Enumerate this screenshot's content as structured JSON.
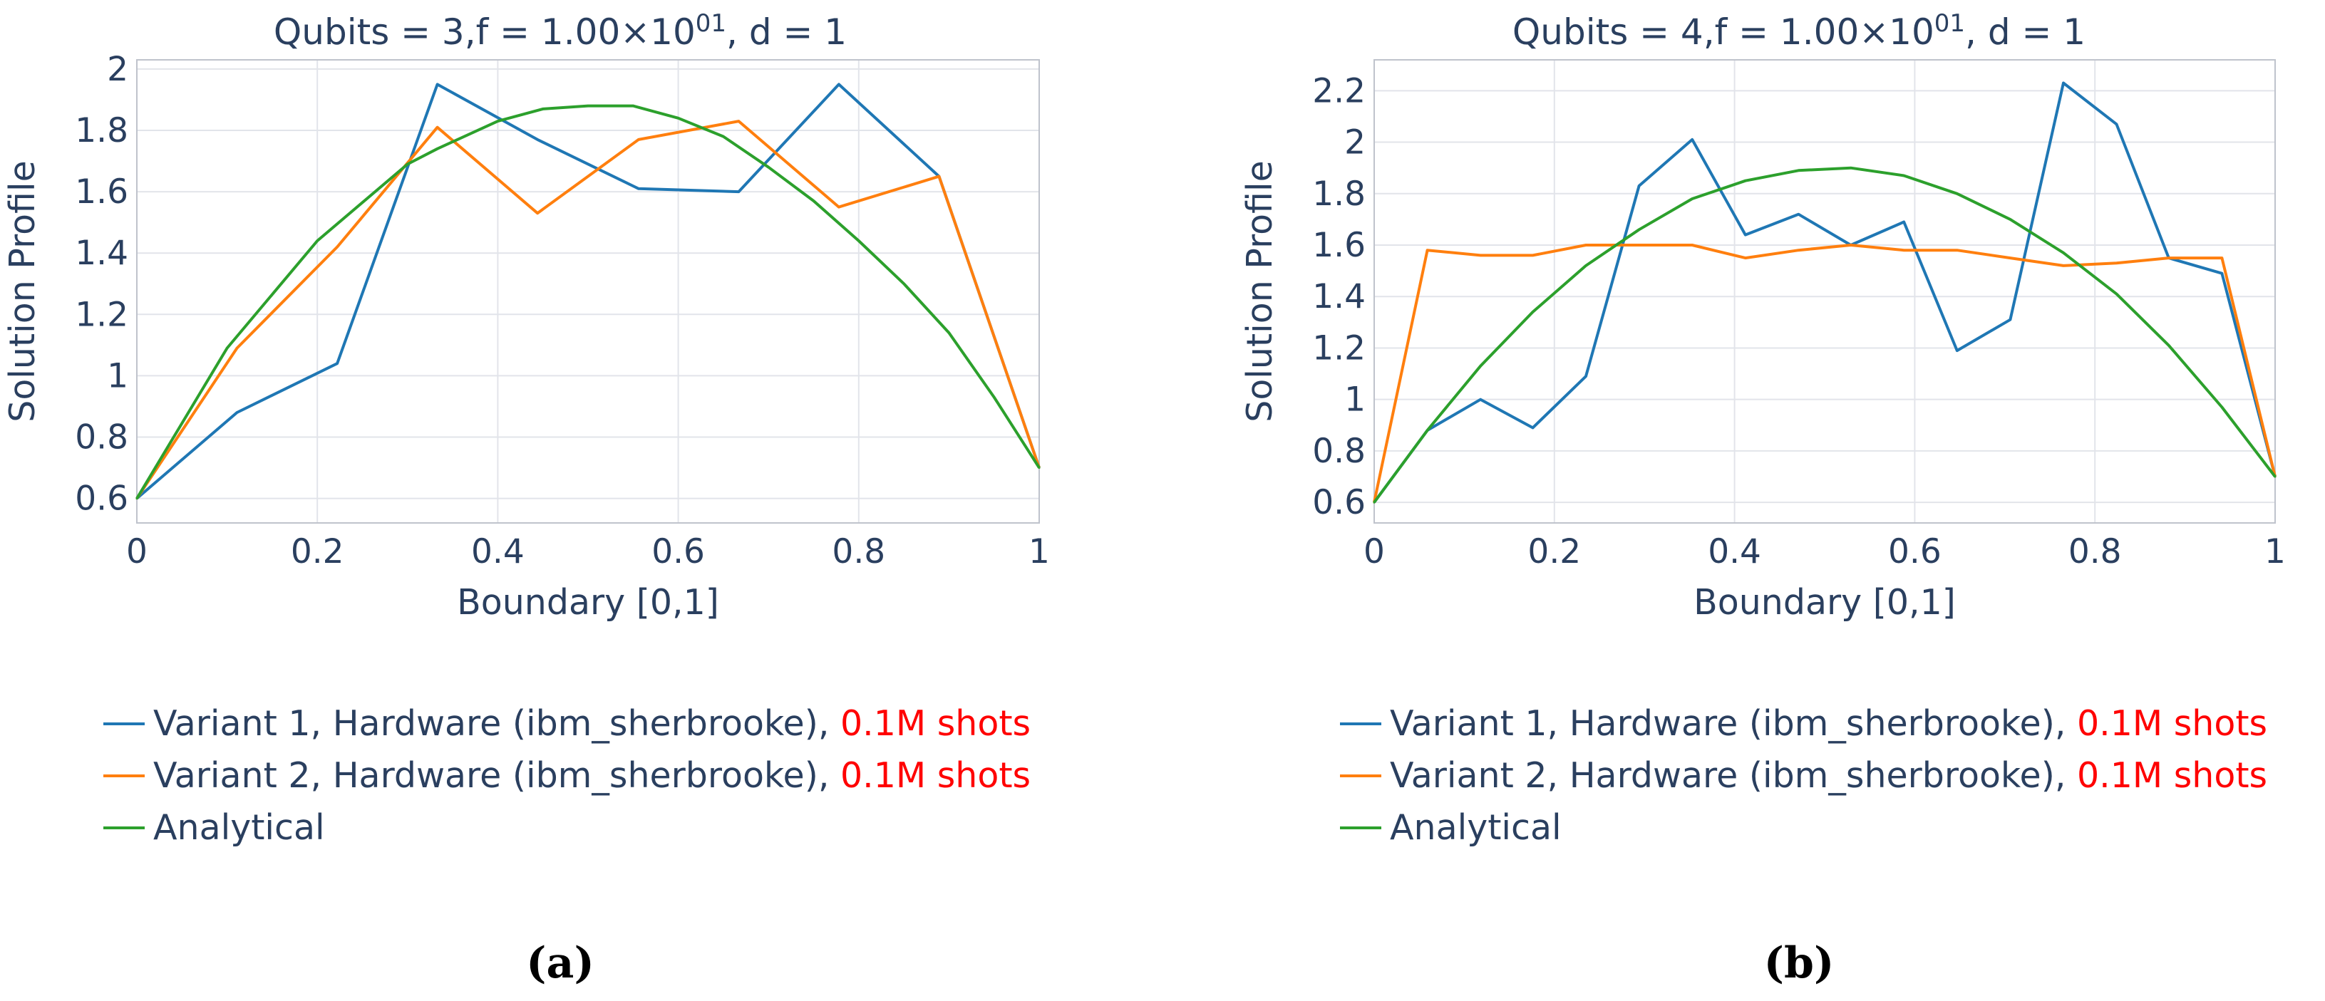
{
  "colors": {
    "variant1": "#1f77b4",
    "variant2": "#ff7f0e",
    "analytical": "#2ca02c",
    "shots_highlight": "#ff0000"
  },
  "chart_data": [
    {
      "type": "line",
      "panel_label": "(a)",
      "title": {
        "prefix": "Qubits = 3,f = 1.00×10",
        "exp": "01",
        "suffix": ", d = 1"
      },
      "xlabel": "Boundary [0,1]",
      "ylabel": "Solution Profile",
      "xlim": [
        0,
        1
      ],
      "ylim": [
        0.52,
        2.03
      ],
      "xticks": [
        0,
        0.2,
        0.4,
        0.6,
        0.8,
        1
      ],
      "xtick_labels": [
        "0",
        "0.2",
        "0.4",
        "0.6",
        "0.8",
        "1"
      ],
      "yticks": [
        0.6,
        0.8,
        1,
        1.2,
        1.4,
        1.6,
        1.8,
        2
      ],
      "ytick_labels": [
        "0.6",
        "0.8",
        "1",
        "1.2",
        "1.4",
        "1.6",
        "1.8",
        "2"
      ],
      "grid": true,
      "legend_position": "bottom",
      "series": [
        {
          "name": "Variant 1, Hardware (ibm_sherbrooke), ",
          "shots": "0.1M shots",
          "color_key": "variant1",
          "x": [
            0,
            0.111,
            0.222,
            0.333,
            0.444,
            0.556,
            0.667,
            0.778,
            0.889,
            1
          ],
          "y": [
            0.6,
            0.88,
            1.04,
            1.95,
            1.77,
            1.61,
            1.6,
            1.95,
            1.65,
            0.7
          ]
        },
        {
          "name": "Variant 2, Hardware (ibm_sherbrooke), ",
          "shots": "0.1M shots",
          "color_key": "variant2",
          "x": [
            0,
            0.111,
            0.222,
            0.333,
            0.444,
            0.556,
            0.667,
            0.778,
            0.889,
            1
          ],
          "y": [
            0.6,
            1.09,
            1.42,
            1.81,
            1.53,
            1.77,
            1.83,
            1.55,
            1.65,
            0.7
          ]
        },
        {
          "name": "Analytical",
          "shots": "",
          "color_key": "analytical",
          "x": [
            0,
            0.1,
            0.2,
            0.3,
            0.333,
            0.4,
            0.45,
            0.5,
            0.55,
            0.6,
            0.65,
            0.7,
            0.75,
            0.8,
            0.85,
            0.9,
            0.95,
            1
          ],
          "y": [
            0.6,
            1.09,
            1.44,
            1.69,
            1.74,
            1.83,
            1.87,
            1.88,
            1.88,
            1.84,
            1.78,
            1.68,
            1.57,
            1.44,
            1.3,
            1.14,
            0.93,
            0.7
          ]
        }
      ]
    },
    {
      "type": "line",
      "panel_label": "(b)",
      "title": {
        "prefix": "Qubits = 4,f = 1.00×10",
        "exp": "01",
        "suffix": ", d = 1"
      },
      "xlabel": "Boundary [0,1]",
      "ylabel": "Solution Profile",
      "xlim": [
        0,
        1
      ],
      "ylim": [
        0.52,
        2.32
      ],
      "xticks": [
        0,
        0.2,
        0.4,
        0.6,
        0.8,
        1
      ],
      "xtick_labels": [
        "0",
        "0.2",
        "0.4",
        "0.6",
        "0.8",
        "1"
      ],
      "yticks": [
        0.6,
        0.8,
        1,
        1.2,
        1.4,
        1.6,
        1.8,
        2,
        2.2
      ],
      "ytick_labels": [
        "0.6",
        "0.8",
        "1",
        "1.2",
        "1.4",
        "1.6",
        "1.8",
        "2",
        "2.2"
      ],
      "grid": true,
      "legend_position": "bottom",
      "series": [
        {
          "name": "Variant 1, Hardware (ibm_sherbrooke), ",
          "shots": "0.1M shots",
          "color_key": "variant1",
          "x": [
            0,
            0.059,
            0.118,
            0.176,
            0.235,
            0.294,
            0.353,
            0.412,
            0.471,
            0.529,
            0.588,
            0.647,
            0.706,
            0.765,
            0.824,
            0.882,
            0.941,
            1
          ],
          "y": [
            0.6,
            0.88,
            1.0,
            0.89,
            1.09,
            1.83,
            2.01,
            1.64,
            1.72,
            1.6,
            1.69,
            1.19,
            1.31,
            2.23,
            2.07,
            1.55,
            1.49,
            0.7
          ]
        },
        {
          "name": "Variant 2, Hardware (ibm_sherbrooke), ",
          "shots": "0.1M shots",
          "color_key": "variant2",
          "x": [
            0,
            0.059,
            0.118,
            0.176,
            0.235,
            0.294,
            0.353,
            0.412,
            0.471,
            0.529,
            0.588,
            0.647,
            0.706,
            0.765,
            0.824,
            0.882,
            0.941,
            1
          ],
          "y": [
            0.6,
            1.58,
            1.56,
            1.56,
            1.6,
            1.6,
            1.6,
            1.55,
            1.58,
            1.6,
            1.58,
            1.58,
            1.55,
            1.52,
            1.53,
            1.55,
            1.55,
            0.7
          ]
        },
        {
          "name": "Analytical",
          "shots": "",
          "color_key": "analytical",
          "x": [
            0,
            0.059,
            0.118,
            0.176,
            0.235,
            0.294,
            0.353,
            0.412,
            0.471,
            0.529,
            0.588,
            0.647,
            0.706,
            0.765,
            0.824,
            0.882,
            0.941,
            1
          ],
          "y": [
            0.6,
            0.88,
            1.13,
            1.34,
            1.52,
            1.66,
            1.78,
            1.85,
            1.89,
            1.9,
            1.87,
            1.8,
            1.7,
            1.57,
            1.41,
            1.21,
            0.97,
            0.7
          ]
        }
      ]
    }
  ]
}
